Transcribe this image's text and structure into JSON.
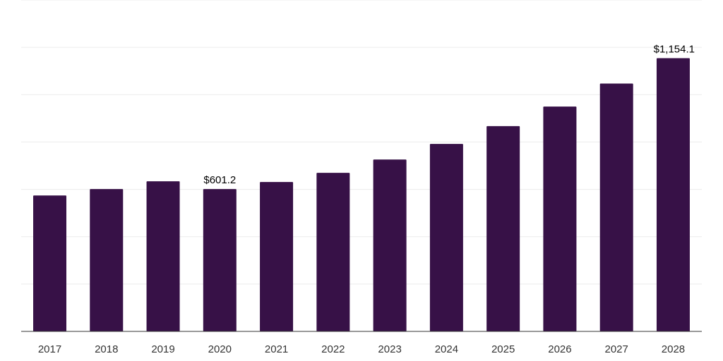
{
  "chart_data": {
    "type": "bar",
    "categories": [
      "2017",
      "2018",
      "2019",
      "2020",
      "2021",
      "2022",
      "2023",
      "2024",
      "2025",
      "2026",
      "2027",
      "2028"
    ],
    "values": [
      574,
      601.2,
      634,
      601.2,
      631,
      670,
      726,
      792,
      867,
      950,
      1047,
      1154.1
    ],
    "data_labels": [
      {
        "index": 3,
        "text": "$601.2"
      },
      {
        "index": 11,
        "text": "$1,154.1"
      }
    ],
    "title": "",
    "xlabel": "",
    "ylabel": "",
    "ylim": [
      0,
      1400
    ],
    "gridline_step": 200,
    "y_tick_labels_shown": false,
    "grid": true,
    "legend": "none",
    "bar_color": "#371147",
    "gridline_color": "#ececec",
    "baseline_color": "#333333"
  }
}
